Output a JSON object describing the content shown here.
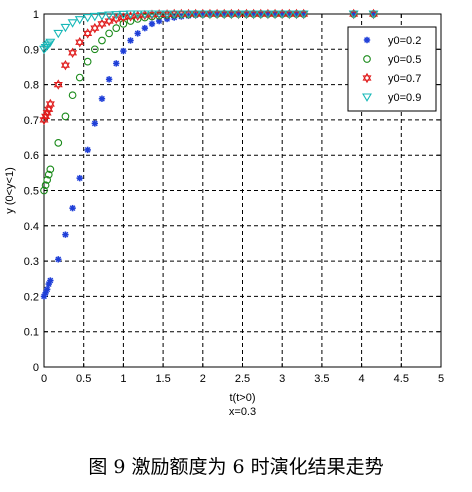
{
  "chart_data": {
    "type": "scatter",
    "xlabel": "t(t>0)",
    "ylabel": "y (0<y<1)",
    "note": "x=0.3",
    "xlim": [
      0,
      5
    ],
    "ylim": [
      0,
      1
    ],
    "xticks": [
      "0",
      "0.5",
      "1",
      "1.5",
      "2",
      "2.5",
      "3",
      "3.5",
      "4",
      "4.5",
      "5"
    ],
    "yticks": [
      "0",
      "0.1",
      "0.2",
      "0.3",
      "0.4",
      "0.5",
      "0.6",
      "0.7",
      "0.8",
      "0.9",
      "1"
    ],
    "grid": true,
    "legend_position": "top-right",
    "series": [
      {
        "name": "y0=0.2",
        "marker": "star",
        "color": "#1f3fd8",
        "x": [
          0,
          0.02,
          0.04,
          0.06,
          0.08,
          0.18,
          0.27,
          0.36,
          0.45,
          0.55,
          0.64,
          0.73,
          0.82,
          0.91,
          1.0,
          1.09,
          1.18,
          1.27,
          1.36,
          1.45,
          1.55,
          1.64,
          1.73,
          1.82,
          1.91,
          2.0,
          2.09,
          2.18,
          2.27,
          2.36,
          2.45,
          2.55,
          2.64,
          2.73,
          2.82,
          2.91,
          3.0,
          3.09,
          3.18,
          3.27,
          3.9,
          4.15
        ],
        "y": [
          0.2,
          0.21,
          0.22,
          0.235,
          0.245,
          0.305,
          0.375,
          0.45,
          0.535,
          0.615,
          0.69,
          0.76,
          0.815,
          0.86,
          0.895,
          0.925,
          0.945,
          0.96,
          0.972,
          0.98,
          0.986,
          0.99,
          0.993,
          0.995,
          0.997,
          0.998,
          0.999,
          0.999,
          1.0,
          1.0,
          1.0,
          1.0,
          1.0,
          1.0,
          1.0,
          1.0,
          1.0,
          1.0,
          1.0,
          1.0,
          1.0,
          1.0
        ]
      },
      {
        "name": "y0=0.5",
        "marker": "circle",
        "color": "#1a8a1a",
        "x": [
          0,
          0.02,
          0.04,
          0.06,
          0.08,
          0.18,
          0.27,
          0.36,
          0.45,
          0.55,
          0.64,
          0.73,
          0.82,
          0.91,
          1.0,
          1.09,
          1.18,
          1.27,
          1.36,
          1.45,
          1.55,
          1.64,
          1.73,
          1.82,
          1.91,
          2.0,
          2.09,
          2.18,
          2.27,
          2.36,
          2.45,
          2.55,
          2.64,
          2.73,
          2.82,
          2.91,
          3.0,
          3.09,
          3.18,
          3.27,
          3.9,
          4.15
        ],
        "y": [
          0.5,
          0.515,
          0.53,
          0.545,
          0.56,
          0.635,
          0.71,
          0.77,
          0.82,
          0.865,
          0.9,
          0.925,
          0.945,
          0.96,
          0.972,
          0.98,
          0.986,
          0.99,
          0.993,
          0.995,
          0.997,
          0.998,
          0.999,
          0.999,
          1.0,
          1.0,
          1.0,
          1.0,
          1.0,
          1.0,
          1.0,
          1.0,
          1.0,
          1.0,
          1.0,
          1.0,
          1.0,
          1.0,
          1.0,
          1.0,
          1.0,
          1.0
        ]
      },
      {
        "name": "y0=0.7",
        "marker": "hexagram",
        "color": "#e01b1b",
        "x": [
          0,
          0.02,
          0.04,
          0.06,
          0.08,
          0.18,
          0.27,
          0.36,
          0.45,
          0.55,
          0.64,
          0.73,
          0.82,
          0.91,
          1.0,
          1.09,
          1.18,
          1.27,
          1.36,
          1.45,
          1.55,
          1.64,
          1.73,
          1.82,
          1.91,
          2.0,
          2.09,
          2.18,
          2.27,
          2.36,
          2.45,
          2.55,
          2.64,
          2.73,
          2.82,
          2.91,
          3.0,
          3.09,
          3.18,
          3.27,
          3.9,
          4.15
        ],
        "y": [
          0.7,
          0.71,
          0.72,
          0.73,
          0.745,
          0.8,
          0.855,
          0.89,
          0.92,
          0.945,
          0.96,
          0.972,
          0.98,
          0.986,
          0.99,
          0.993,
          0.995,
          0.997,
          0.998,
          0.999,
          0.999,
          1.0,
          1.0,
          1.0,
          1.0,
          1.0,
          1.0,
          1.0,
          1.0,
          1.0,
          1.0,
          1.0,
          1.0,
          1.0,
          1.0,
          1.0,
          1.0,
          1.0,
          1.0,
          1.0,
          1.0,
          1.0
        ]
      },
      {
        "name": "y0=0.9",
        "marker": "triangle-down",
        "color": "#17b8b8",
        "x": [
          0,
          0.02,
          0.04,
          0.06,
          0.08,
          0.18,
          0.27,
          0.36,
          0.45,
          0.55,
          0.64,
          0.73,
          0.82,
          0.91,
          1.0,
          1.09,
          1.18,
          1.27,
          1.36,
          1.45,
          1.55,
          1.64,
          1.73,
          1.82,
          1.91,
          2.0,
          2.09,
          2.18,
          2.27,
          2.36,
          2.45,
          2.55,
          2.64,
          2.73,
          2.82,
          2.91,
          3.0,
          3.09,
          3.18,
          3.27,
          3.9,
          4.15
        ],
        "y": [
          0.9,
          0.905,
          0.91,
          0.915,
          0.92,
          0.945,
          0.962,
          0.975,
          0.984,
          0.99,
          0.993,
          0.995,
          0.997,
          0.998,
          0.999,
          1.0,
          1.0,
          1.0,
          1.0,
          1.0,
          1.0,
          1.0,
          1.0,
          1.0,
          1.0,
          1.0,
          1.0,
          1.0,
          1.0,
          1.0,
          1.0,
          1.0,
          1.0,
          1.0,
          1.0,
          1.0,
          1.0,
          1.0,
          1.0,
          1.0,
          1.0,
          1.0
        ]
      }
    ]
  },
  "caption": "图 9    激励额度为 6 时演化结果走势"
}
